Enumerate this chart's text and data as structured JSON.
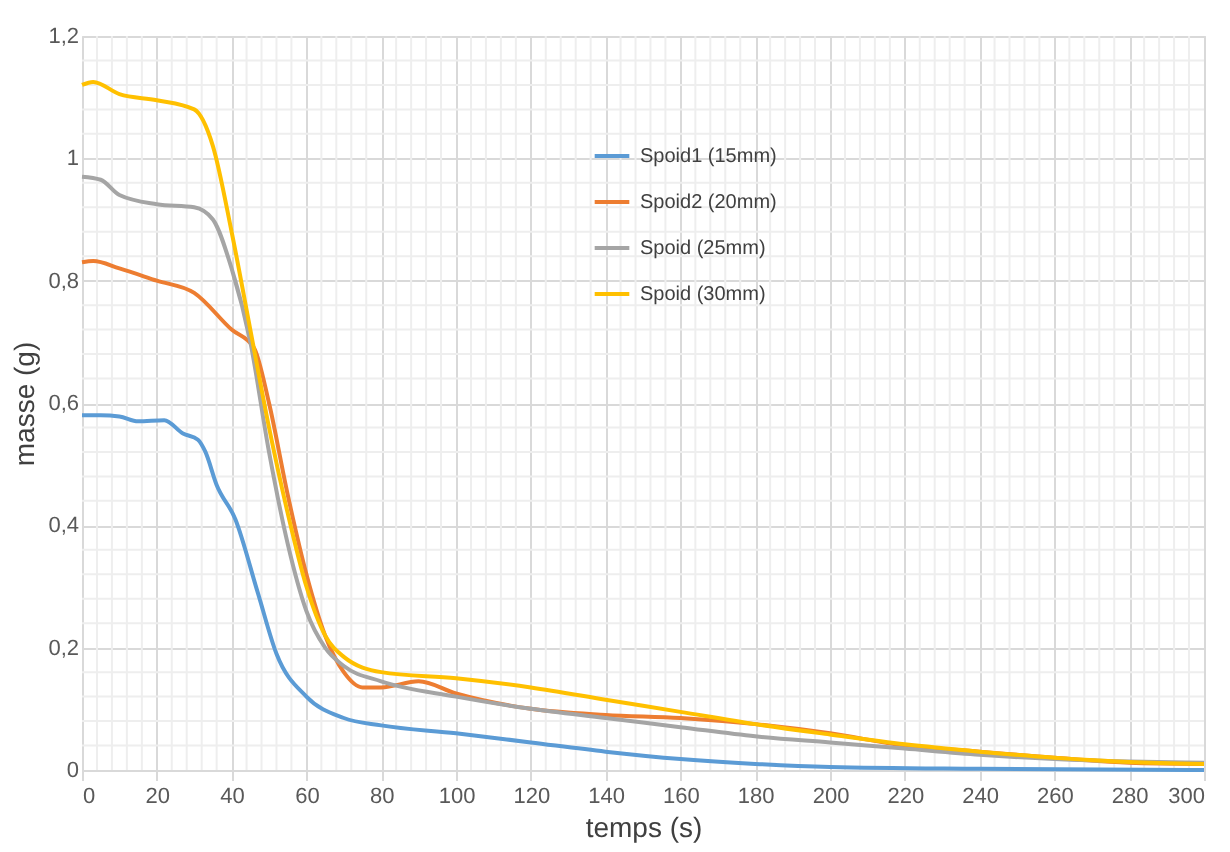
{
  "chart_data": {
    "type": "line",
    "xlabel": "temps (s)",
    "ylabel": "masse (g)",
    "xlim": [
      0,
      300
    ],
    "xticks": [
      0,
      20,
      40,
      60,
      80,
      100,
      120,
      140,
      160,
      180,
      200,
      220,
      240,
      260,
      280,
      300
    ],
    "ylim": [
      0,
      1.2
    ],
    "yticks": [
      0,
      {
        "value": 0.2,
        "label": "0,2"
      },
      {
        "value": 0.4,
        "label": "0,4"
      },
      {
        "value": 0.6,
        "label": "0,6"
      },
      {
        "value": 0.8,
        "label": "0,8"
      },
      1,
      {
        "value": 1.2,
        "label": "1,2"
      }
    ],
    "grid": true,
    "legend": "top right",
    "marker": "none",
    "line_style": "solid",
    "series": [
      {
        "name": "Spoid1 (15mm)",
        "color": "#5b9bd5",
        "x": [
          0,
          5,
          10,
          15,
          22,
          27,
          31,
          33,
          36,
          41,
          47,
          52,
          60,
          70,
          80,
          100,
          120,
          140,
          160,
          180,
          200,
          240,
          300
        ],
        "values": [
          0.58,
          0.58,
          0.578,
          0.57,
          0.572,
          0.55,
          0.54,
          0.52,
          0.466,
          0.41,
          0.29,
          0.19,
          0.12,
          0.085,
          0.073,
          0.06,
          0.045,
          0.03,
          0.018,
          0.01,
          0.005,
          0.002,
          0
        ]
      },
      {
        "name": "Spoid2 (20mm)",
        "color": "#ed7d31",
        "x": [
          0,
          3,
          10,
          20,
          30,
          40,
          46,
          50,
          55,
          60,
          65,
          70,
          75,
          80,
          90,
          100,
          120,
          140,
          160,
          180,
          200,
          220,
          240,
          260,
          280,
          300
        ],
        "values": [
          0.83,
          0.832,
          0.82,
          0.8,
          0.78,
          0.72,
          0.69,
          0.6,
          0.45,
          0.32,
          0.22,
          0.16,
          0.135,
          0.135,
          0.145,
          0.125,
          0.1,
          0.09,
          0.085,
          0.075,
          0.06,
          0.04,
          0.03,
          0.02,
          0.012,
          0.01
        ]
      },
      {
        "name": "Spoid (25mm)",
        "color": "#a5a5a5",
        "x": [
          0,
          5,
          10,
          20,
          30,
          35,
          40,
          45,
          50,
          55,
          60,
          65,
          70,
          80,
          100,
          120,
          140,
          160,
          180,
          200,
          220,
          240,
          260,
          280,
          300
        ],
        "values": [
          0.97,
          0.965,
          0.94,
          0.925,
          0.92,
          0.9,
          0.82,
          0.7,
          0.52,
          0.37,
          0.26,
          0.2,
          0.17,
          0.145,
          0.12,
          0.1,
          0.085,
          0.07,
          0.055,
          0.045,
          0.035,
          0.025,
          0.018,
          0.014,
          0.012
        ]
      },
      {
        "name": "Spoid (30mm)",
        "color": "#ffc000",
        "x": [
          0,
          3,
          10,
          20,
          30,
          35,
          40,
          45,
          50,
          55,
          60,
          65,
          70,
          80,
          100,
          120,
          140,
          160,
          180,
          200,
          220,
          240,
          260,
          280,
          300
        ],
        "values": [
          1.12,
          1.125,
          1.105,
          1.095,
          1.08,
          1.02,
          0.88,
          0.72,
          0.56,
          0.42,
          0.3,
          0.22,
          0.185,
          0.16,
          0.15,
          0.135,
          0.115,
          0.095,
          0.075,
          0.058,
          0.042,
          0.03,
          0.02,
          0.013,
          0.01
        ]
      }
    ]
  }
}
